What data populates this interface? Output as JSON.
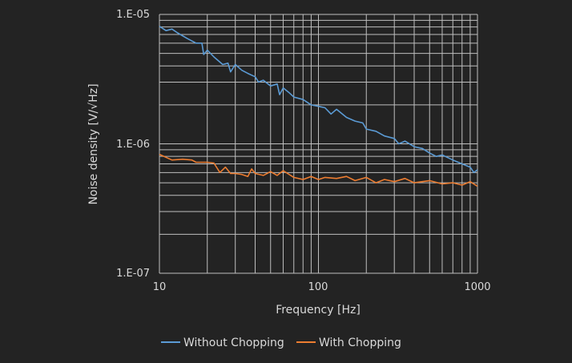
{
  "chart_data": {
    "type": "line",
    "title": "",
    "xlabel": "Frequency [Hz]",
    "ylabel": "Noise density [V/√Hz]",
    "x_scale": "log",
    "y_scale": "log",
    "xlim": [
      10,
      1000
    ],
    "ylim": [
      1e-07,
      1e-05
    ],
    "x_tick_labels": [
      "10",
      "100",
      "1000"
    ],
    "x_ticks": [
      10,
      100,
      1000
    ],
    "y_tick_labels": [
      "1.E-07",
      "1.E-06",
      "1.E-05"
    ],
    "y_ticks": [
      1e-07,
      1e-06,
      1e-05
    ],
    "grid": true,
    "legend_position": "bottom",
    "background": "#232323",
    "grid_color": "#bfbfbf",
    "series": [
      {
        "name": "Without Chopping",
        "color": "#5b9bd5",
        "x": [
          10,
          11,
          12,
          13,
          15,
          17,
          18.5,
          19,
          20,
          22,
          25,
          27,
          28,
          30,
          33,
          36,
          40,
          42,
          45,
          50,
          55,
          57,
          60,
          65,
          70,
          80,
          90,
          100,
          110,
          120,
          130,
          150,
          170,
          190,
          200,
          230,
          260,
          300,
          320,
          350,
          400,
          450,
          500,
          550,
          600,
          700,
          800,
          900,
          950,
          1000
        ],
        "y": [
          8.1e-06,
          7.5e-06,
          7.7e-06,
          7.2e-06,
          6.5e-06,
          6e-06,
          6e-06,
          4.9e-06,
          5.3e-06,
          4.7e-06,
          4.1e-06,
          4.2e-06,
          3.6e-06,
          4.1e-06,
          3.7e-06,
          3.5e-06,
          3.3e-06,
          3e-06,
          3.1e-06,
          2.8e-06,
          2.9e-06,
          2.4e-06,
          2.7e-06,
          2.5e-06,
          2.3e-06,
          2.2e-06,
          2e-06,
          1.95e-06,
          1.9e-06,
          1.7e-06,
          1.85e-06,
          1.6e-06,
          1.5e-06,
          1.45e-06,
          1.3e-06,
          1.25e-06,
          1.15e-06,
          1.1e-06,
          1e-06,
          1.05e-06,
          9.5e-07,
          9.2e-07,
          8.5e-07,
          8e-07,
          8.2e-07,
          7.5e-07,
          7e-07,
          6.6e-07,
          6e-07,
          6.3e-07
        ]
      },
      {
        "name": "With Chopping",
        "color": "#ed7d31",
        "x": [
          10,
          12,
          14,
          16,
          17,
          20,
          22,
          24,
          26,
          28,
          30,
          33,
          36,
          38,
          40,
          45,
          50,
          55,
          60,
          70,
          80,
          90,
          100,
          110,
          130,
          150,
          170,
          200,
          230,
          260,
          300,
          350,
          400,
          500,
          600,
          700,
          800,
          900,
          1000
        ],
        "y": [
          8.3e-07,
          7.5e-07,
          7.6e-07,
          7.5e-07,
          7.2e-07,
          7.2e-07,
          7.1e-07,
          6e-07,
          6.6e-07,
          5.9e-07,
          5.9e-07,
          5.8e-07,
          5.6e-07,
          6.4e-07,
          5.9e-07,
          5.7e-07,
          6.1e-07,
          5.7e-07,
          6.2e-07,
          5.5e-07,
          5.3e-07,
          5.6e-07,
          5.3e-07,
          5.5e-07,
          5.4e-07,
          5.6e-07,
          5.2e-07,
          5.5e-07,
          5e-07,
          5.3e-07,
          5.1e-07,
          5.4e-07,
          5e-07,
          5.2e-07,
          4.9e-07,
          5e-07,
          4.8e-07,
          5.1e-07,
          4.7e-07
        ]
      }
    ]
  }
}
